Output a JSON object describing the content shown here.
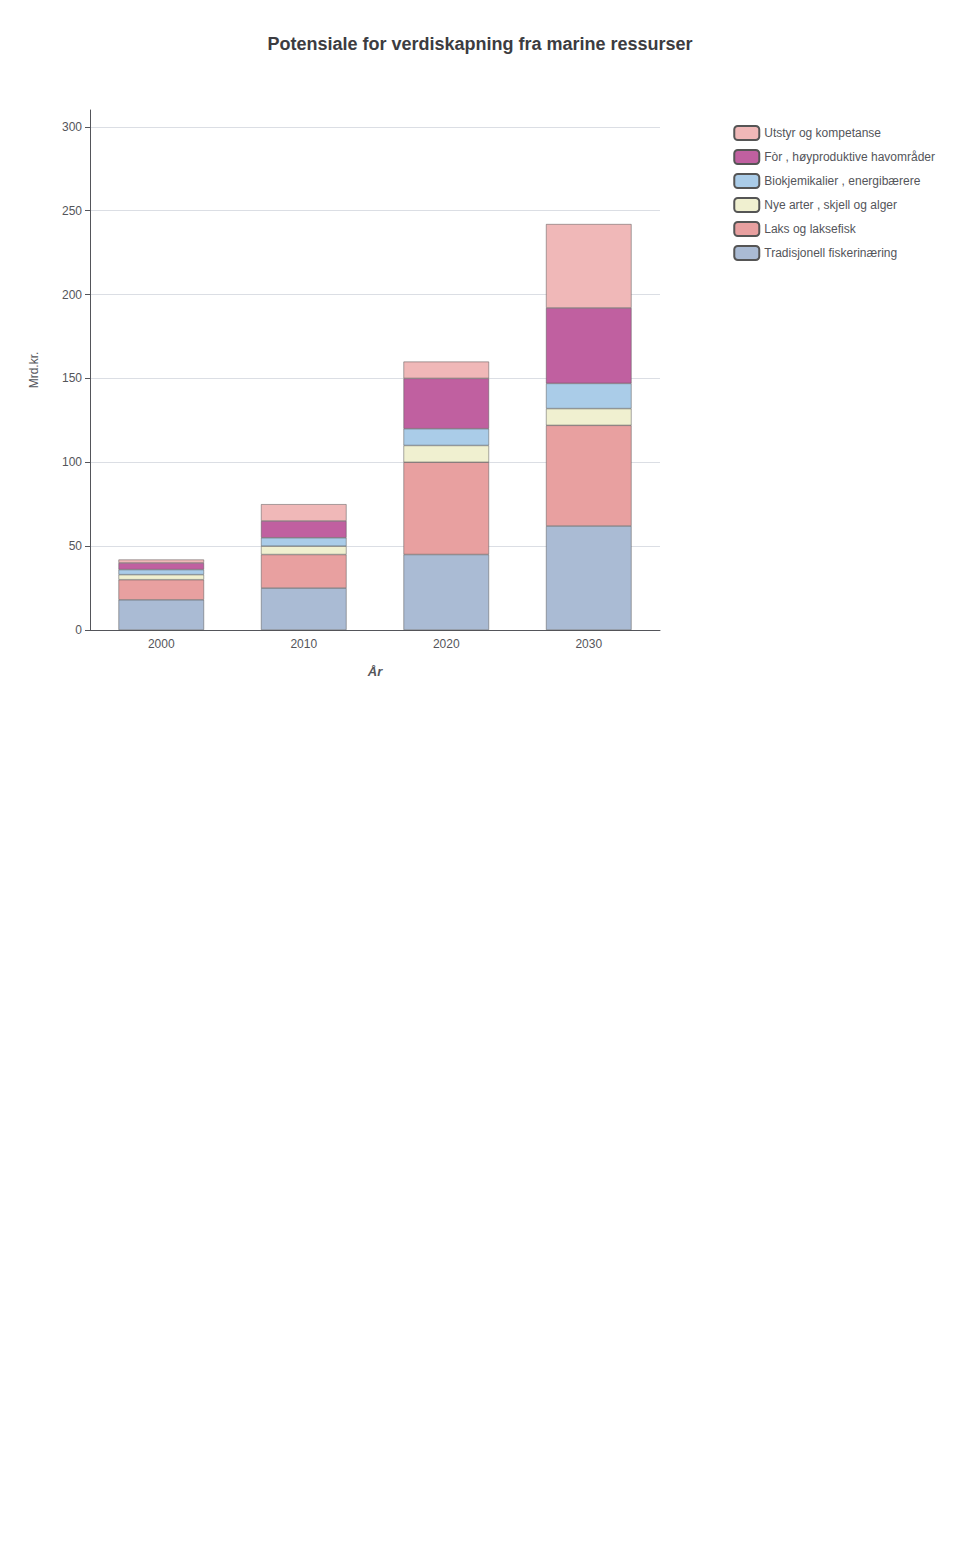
{
  "chart_data": {
    "type": "bar",
    "title": "Potensiale for verdiskapning fra marine ressurser",
    "xlabel": "År",
    "ylabel": "Mrd.kr.",
    "categories": [
      "2000",
      "2010",
      "2020",
      "2030"
    ],
    "series": [
      {
        "name": "Tradisjonell fiskerinæring",
        "color": "#aabbd4",
        "values": [
          18,
          25,
          45,
          62
        ]
      },
      {
        "name": "Laks og laksefisk",
        "color": "#e8a0a0",
        "values": [
          12,
          20,
          55,
          60
        ]
      },
      {
        "name": "Nye arter , skjell og alger",
        "color": "#f0f0d0",
        "values": [
          3,
          5,
          10,
          10
        ]
      },
      {
        "name": "Biokjemikalier , energibærere",
        "color": "#aacce8",
        "values": [
          3,
          5,
          10,
          15
        ]
      },
      {
        "name": "Fòr , høyproduktive havområder",
        "color": "#c060a0",
        "values": [
          4,
          10,
          30,
          45
        ]
      },
      {
        "name": "Utstyr og kompetanse",
        "color": "#f0b8b8",
        "values": [
          2,
          10,
          10,
          50
        ]
      }
    ],
    "stacked": true,
    "ylim": [
      0,
      310
    ],
    "yticks": [
      0,
      50,
      100,
      150,
      200,
      250,
      300
    ],
    "grid": true,
    "legend": "right"
  }
}
